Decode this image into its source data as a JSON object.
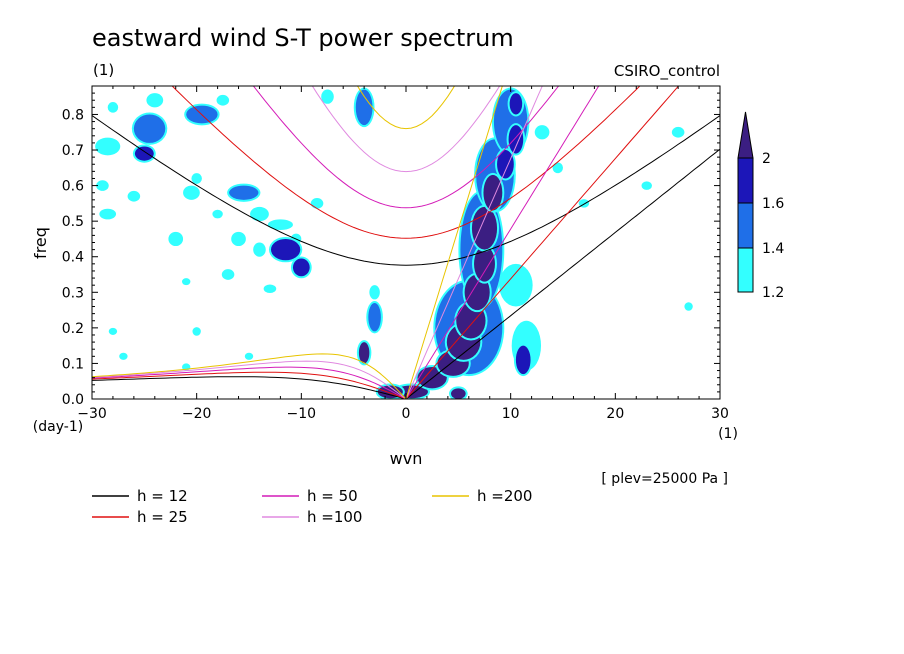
{
  "chart_data": {
    "type": "heatmap",
    "title": "eastward wind S-T power spectrum",
    "subtitle_left": "(1)",
    "subtitle_right": "CSIRO_control",
    "xlabel": "wvn",
    "ylabel": "freq",
    "x_unit": "(1)",
    "y_unit": "(day-1)",
    "xlim": [
      -30,
      30
    ],
    "ylim": [
      0.0,
      0.88
    ],
    "x_ticks": [
      -30,
      -20,
      -10,
      0,
      10,
      20,
      30
    ],
    "x_tick_labels": [
      "−30",
      "−20",
      "−10",
      "0",
      "10",
      "20",
      "30"
    ],
    "y_ticks": [
      0.0,
      0.1,
      0.2,
      0.3,
      0.4,
      0.5,
      0.6,
      0.7,
      0.8
    ],
    "y_tick_labels": [
      "0.0",
      "0.1",
      "0.2",
      "0.3",
      "0.4",
      "0.5",
      "0.6",
      "0.7",
      "0.8"
    ],
    "annotation": "[ plev=25000 Pa ]",
    "colorbar": {
      "levels": [
        1.2,
        1.4,
        1.6,
        2
      ],
      "labels": [
        "1.2",
        "1.4",
        "1.6",
        "2"
      ],
      "colors": [
        "#33ffff",
        "#1f6fe8",
        "#1c16b8",
        "#3b1e82"
      ]
    },
    "dispersion_curves": [
      {
        "label": "h = 12",
        "h": 12,
        "color": "#000000"
      },
      {
        "label": "h = 25",
        "h": 25,
        "color": "#e01010"
      },
      {
        "label": "h = 50",
        "h": 50,
        "color": "#d41cb8"
      },
      {
        "label": "h =100",
        "h": 100,
        "color": "#e08ae0"
      },
      {
        "label": "h =200",
        "h": 200,
        "color": "#e8c400"
      }
    ],
    "blobs": [
      {
        "x": 0.5,
        "y": 0.02,
        "level": 3,
        "rx": 1.6,
        "ry": 0.018
      },
      {
        "x": 2.5,
        "y": 0.06,
        "level": 3,
        "rx": 1.4,
        "ry": 0.03
      },
      {
        "x": 4.5,
        "y": 0.1,
        "level": 3,
        "rx": 1.5,
        "ry": 0.035
      },
      {
        "x": 5.5,
        "y": 0.16,
        "level": 3,
        "rx": 1.6,
        "ry": 0.05
      },
      {
        "x": 6.2,
        "y": 0.22,
        "level": 3,
        "rx": 1.4,
        "ry": 0.05
      },
      {
        "x": 6.8,
        "y": 0.3,
        "level": 3,
        "rx": 1.2,
        "ry": 0.05
      },
      {
        "x": 7.5,
        "y": 0.38,
        "level": 3,
        "rx": 1.0,
        "ry": 0.05
      },
      {
        "x": 7.5,
        "y": 0.48,
        "level": 3,
        "rx": 1.2,
        "ry": 0.06
      },
      {
        "x": 8.3,
        "y": 0.58,
        "level": 3,
        "rx": 0.9,
        "ry": 0.05
      },
      {
        "x": 9.5,
        "y": 0.66,
        "level": 2,
        "rx": 0.8,
        "ry": 0.04
      },
      {
        "x": 10.5,
        "y": 0.73,
        "level": 2,
        "rx": 0.7,
        "ry": 0.04
      },
      {
        "x": 10.5,
        "y": 0.83,
        "level": 2,
        "rx": 0.6,
        "ry": 0.03
      },
      {
        "x": 6.0,
        "y": 0.2,
        "level": 1,
        "rx": 3.2,
        "ry": 0.13
      },
      {
        "x": 7.2,
        "y": 0.42,
        "level": 1,
        "rx": 2.0,
        "ry": 0.16
      },
      {
        "x": 8.5,
        "y": 0.63,
        "level": 1,
        "rx": 1.8,
        "ry": 0.1
      },
      {
        "x": 10.0,
        "y": 0.78,
        "level": 1,
        "rx": 1.6,
        "ry": 0.09
      },
      {
        "x": 10.5,
        "y": 0.32,
        "level": 0,
        "rx": 1.6,
        "ry": 0.06
      },
      {
        "x": 11.2,
        "y": 0.11,
        "level": 2,
        "rx": 0.7,
        "ry": 0.04
      },
      {
        "x": 11.5,
        "y": 0.15,
        "level": 0,
        "rx": 1.4,
        "ry": 0.07
      },
      {
        "x": 5.0,
        "y": 0.015,
        "level": 3,
        "rx": 0.7,
        "ry": 0.015
      },
      {
        "x": -1.5,
        "y": 0.02,
        "level": 3,
        "rx": 1.2,
        "ry": 0.018
      },
      {
        "x": -4.0,
        "y": 0.13,
        "level": 3,
        "rx": 0.5,
        "ry": 0.03
      },
      {
        "x": -3.0,
        "y": 0.23,
        "level": 1,
        "rx": 0.6,
        "ry": 0.04
      },
      {
        "x": -11.5,
        "y": 0.42,
        "level": 2,
        "rx": 1.4,
        "ry": 0.03
      },
      {
        "x": -10.0,
        "y": 0.37,
        "level": 2,
        "rx": 0.8,
        "ry": 0.025
      },
      {
        "x": -12.0,
        "y": 0.49,
        "level": 0,
        "rx": 1.2,
        "ry": 0.015
      },
      {
        "x": -15.5,
        "y": 0.58,
        "level": 1,
        "rx": 1.4,
        "ry": 0.02
      },
      {
        "x": -19.5,
        "y": 0.8,
        "level": 1,
        "rx": 1.5,
        "ry": 0.025
      },
      {
        "x": -24.5,
        "y": 0.76,
        "level": 1,
        "rx": 1.5,
        "ry": 0.04
      },
      {
        "x": -25.0,
        "y": 0.69,
        "level": 2,
        "rx": 0.9,
        "ry": 0.02
      },
      {
        "x": -28.5,
        "y": 0.71,
        "level": 0,
        "rx": 1.2,
        "ry": 0.025
      },
      {
        "x": -28.5,
        "y": 0.52,
        "level": 0,
        "rx": 0.8,
        "ry": 0.015
      },
      {
        "x": -29.0,
        "y": 0.6,
        "level": 0,
        "rx": 0.6,
        "ry": 0.015
      },
      {
        "x": -26.0,
        "y": 0.57,
        "level": 0,
        "rx": 0.6,
        "ry": 0.015
      },
      {
        "x": -20.5,
        "y": 0.58,
        "level": 0,
        "rx": 0.8,
        "ry": 0.02
      },
      {
        "x": -22.0,
        "y": 0.45,
        "level": 0,
        "rx": 0.7,
        "ry": 0.02
      },
      {
        "x": -16.0,
        "y": 0.45,
        "level": 0,
        "rx": 0.7,
        "ry": 0.02
      },
      {
        "x": -14.0,
        "y": 0.52,
        "level": 0,
        "rx": 0.9,
        "ry": 0.02
      },
      {
        "x": -17.0,
        "y": 0.35,
        "level": 0,
        "rx": 0.6,
        "ry": 0.015
      },
      {
        "x": -13.0,
        "y": 0.31,
        "level": 0,
        "rx": 0.6,
        "ry": 0.012
      },
      {
        "x": -14.0,
        "y": 0.42,
        "level": 0,
        "rx": 0.6,
        "ry": 0.02
      },
      {
        "x": -8.5,
        "y": 0.55,
        "level": 0,
        "rx": 0.6,
        "ry": 0.015
      },
      {
        "x": -3.0,
        "y": 0.3,
        "level": 0,
        "rx": 0.5,
        "ry": 0.02
      },
      {
        "x": -4.0,
        "y": 0.82,
        "level": 1,
        "rx": 0.8,
        "ry": 0.05
      },
      {
        "x": -7.5,
        "y": 0.85,
        "level": 0,
        "rx": 0.6,
        "ry": 0.02
      },
      {
        "x": -17.5,
        "y": 0.84,
        "level": 0,
        "rx": 0.6,
        "ry": 0.015
      },
      {
        "x": -24.0,
        "y": 0.84,
        "level": 0,
        "rx": 0.8,
        "ry": 0.02
      },
      {
        "x": -28.0,
        "y": 0.82,
        "level": 0,
        "rx": 0.5,
        "ry": 0.015
      },
      {
        "x": -20.0,
        "y": 0.62,
        "level": 0,
        "rx": 0.5,
        "ry": 0.015
      },
      {
        "x": -18.0,
        "y": 0.52,
        "level": 0,
        "rx": 0.5,
        "ry": 0.012
      },
      {
        "x": -10.5,
        "y": 0.45,
        "level": 0,
        "rx": 0.5,
        "ry": 0.015
      },
      {
        "x": -21.0,
        "y": 0.33,
        "level": 0,
        "rx": 0.4,
        "ry": 0.01
      },
      {
        "x": 13.0,
        "y": 0.75,
        "level": 0,
        "rx": 0.7,
        "ry": 0.02
      },
      {
        "x": 14.5,
        "y": 0.65,
        "level": 0,
        "rx": 0.5,
        "ry": 0.015
      },
      {
        "x": 23.0,
        "y": 0.6,
        "level": 0,
        "rx": 0.5,
        "ry": 0.012
      },
      {
        "x": 26.0,
        "y": 0.75,
        "level": 0,
        "rx": 0.6,
        "ry": 0.015
      },
      {
        "x": 17.0,
        "y": 0.55,
        "level": 0,
        "rx": 0.5,
        "ry": 0.012
      },
      {
        "x": 27.0,
        "y": 0.26,
        "level": 0,
        "rx": 0.4,
        "ry": 0.012
      },
      {
        "x": -28.0,
        "y": 0.19,
        "level": 0,
        "rx": 0.4,
        "ry": 0.01
      },
      {
        "x": -20.0,
        "y": 0.19,
        "level": 0,
        "rx": 0.4,
        "ry": 0.012
      },
      {
        "x": -21.0,
        "y": 0.09,
        "level": 0,
        "rx": 0.4,
        "ry": 0.01
      },
      {
        "x": -15.0,
        "y": 0.12,
        "level": 0,
        "rx": 0.4,
        "ry": 0.01
      },
      {
        "x": -27.0,
        "y": 0.12,
        "level": 0,
        "rx": 0.4,
        "ry": 0.01
      }
    ]
  }
}
